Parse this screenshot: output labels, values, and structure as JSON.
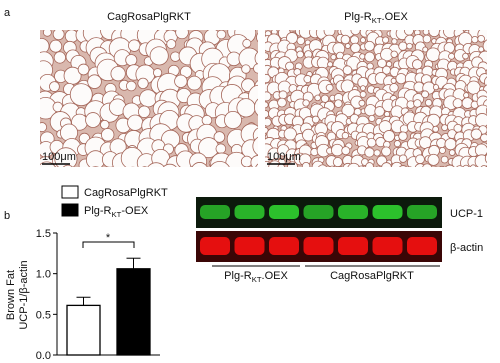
{
  "panels": {
    "a": {
      "label": "a",
      "images": [
        {
          "title": "CagRosaPlgRKT",
          "scale": "100μm"
        },
        {
          "title": [
            "Plg-R",
            "KT",
            ".OEX"
          ],
          "scale": "100μm"
        }
      ]
    },
    "b": {
      "label": "b",
      "blot": {
        "rows": [
          "UCP-1",
          "β-actin"
        ],
        "groups": [
          [
            "Plg-R",
            "KT",
            ".OEX"
          ],
          "CagRosaPlgRKT"
        ]
      }
    }
  },
  "chart_data": {
    "type": "bar",
    "y_label": [
      "Brown Fat",
      "UCP-1/β-actin"
    ],
    "categories": [
      null
    ],
    "series": [
      {
        "name": "CagRosaPlgRKT",
        "color": "#ffffff",
        "values": [
          0.61
        ],
        "errors": [
          0.1
        ]
      },
      {
        "name": [
          "Plg-R",
          "KT",
          "-OEX"
        ],
        "color": "#000000",
        "values": [
          1.06
        ],
        "errors": [
          0.13
        ]
      }
    ],
    "ylim": [
      0,
      1.5
    ],
    "yticks": [
      {
        "value": 0,
        "label": "0.0"
      },
      {
        "value": 0.5,
        "label": "0.5"
      },
      {
        "value": 1,
        "label": "1.0"
      },
      {
        "value": 1.5,
        "label": "1.5"
      }
    ],
    "significance": "*"
  }
}
